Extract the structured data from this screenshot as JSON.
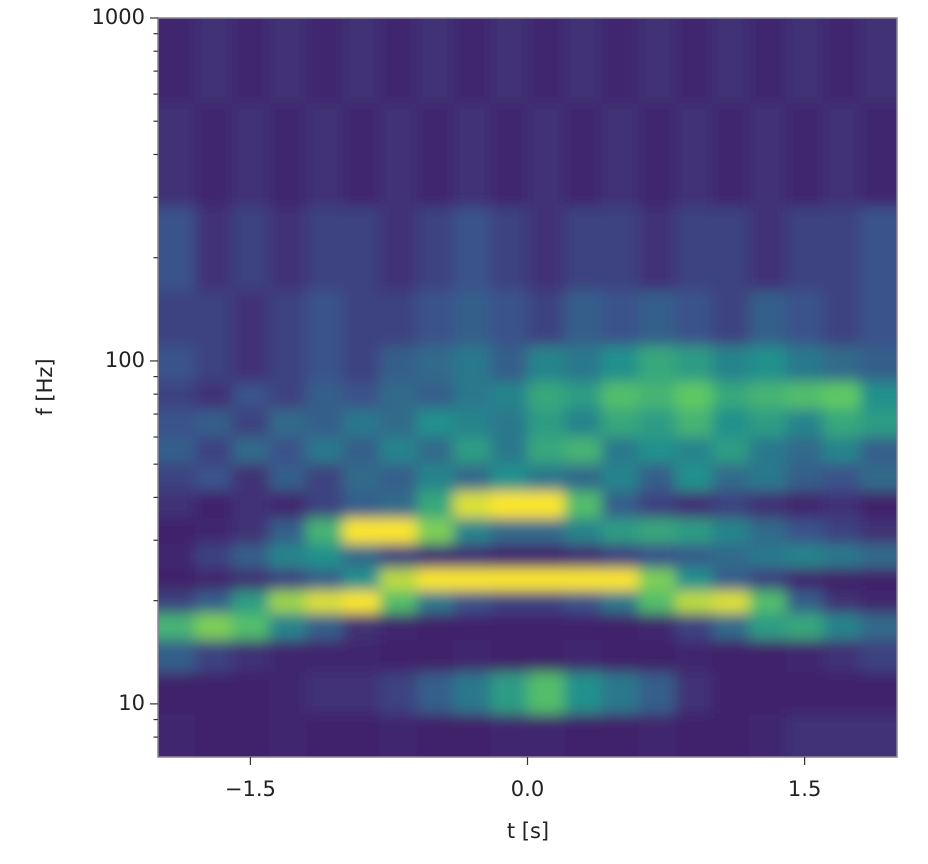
{
  "chart_data": {
    "type": "heatmap",
    "colormap": "viridis",
    "zlim": [
      0,
      1
    ],
    "xlabel": "t [s]",
    "ylabel": "f [Hz]",
    "xlim": [
      -2,
      2
    ],
    "ylim": [
      7,
      1000
    ],
    "yscale": "log",
    "xticks": [
      {
        "value": -1.5,
        "label": "−1.5"
      },
      {
        "value": 0,
        "label": "0.0"
      },
      1.5
    ],
    "yticks": [
      10,
      100,
      1000
    ],
    "yminorticks": [
      8,
      9,
      20,
      30,
      40,
      50,
      60,
      70,
      80,
      90,
      200,
      300,
      400,
      500,
      600,
      700,
      800,
      900
    ],
    "x": [
      -1.9,
      -1.7,
      -1.5,
      -1.3,
      -1.1,
      -0.9,
      -0.7,
      -0.5,
      -0.3,
      -0.1,
      0.1,
      0.3,
      0.5,
      0.7,
      0.9,
      1.1,
      1.3,
      1.5,
      1.7,
      1.9
    ],
    "y": [
      8,
      11,
      14,
      17,
      20,
      23,
      27,
      32,
      38,
      46,
      55,
      66,
      80,
      95,
      130,
      200,
      400,
      800
    ],
    "z": [
      [
        0.12,
        0.1,
        0.1,
        0.12,
        0.1,
        0.1,
        0.12,
        0.1,
        0.1,
        0.12,
        0.12,
        0.1,
        0.1,
        0.12,
        0.1,
        0.1,
        0.12,
        0.15,
        0.15,
        0.15
      ],
      [
        0.1,
        0.1,
        0.1,
        0.12,
        0.15,
        0.15,
        0.2,
        0.3,
        0.4,
        0.55,
        0.7,
        0.5,
        0.4,
        0.3,
        0.15,
        0.1,
        0.1,
        0.1,
        0.1,
        0.1
      ],
      [
        0.3,
        0.2,
        0.15,
        0.12,
        0.12,
        0.12,
        0.1,
        0.1,
        0.12,
        0.1,
        0.1,
        0.12,
        0.1,
        0.1,
        0.12,
        0.1,
        0.1,
        0.12,
        0.15,
        0.2
      ],
      [
        0.65,
        0.8,
        0.7,
        0.45,
        0.3,
        0.15,
        0.12,
        0.1,
        0.1,
        0.1,
        0.1,
        0.1,
        0.1,
        0.12,
        0.2,
        0.35,
        0.55,
        0.6,
        0.45,
        0.35
      ],
      [
        0.2,
        0.3,
        0.55,
        0.85,
        0.95,
        1.0,
        0.7,
        0.4,
        0.25,
        0.2,
        0.2,
        0.25,
        0.4,
        0.7,
        0.9,
        0.95,
        0.7,
        0.3,
        0.15,
        0.12
      ],
      [
        0.1,
        0.12,
        0.15,
        0.2,
        0.3,
        0.5,
        0.9,
        1.0,
        1.0,
        1.0,
        1.0,
        1.0,
        1.0,
        0.8,
        0.5,
        0.3,
        0.2,
        0.12,
        0.1,
        0.1
      ],
      [
        0.12,
        0.2,
        0.3,
        0.45,
        0.5,
        0.35,
        0.2,
        0.15,
        0.15,
        0.12,
        0.12,
        0.15,
        0.2,
        0.25,
        0.3,
        0.35,
        0.4,
        0.45,
        0.4,
        0.35
      ],
      [
        0.1,
        0.12,
        0.15,
        0.3,
        0.65,
        1.0,
        1.0,
        0.8,
        0.45,
        0.35,
        0.35,
        0.45,
        0.55,
        0.6,
        0.55,
        0.45,
        0.35,
        0.25,
        0.2,
        0.15
      ],
      [
        0.15,
        0.1,
        0.15,
        0.12,
        0.2,
        0.3,
        0.35,
        0.6,
        0.95,
        1.0,
        1.0,
        0.7,
        0.3,
        0.2,
        0.15,
        0.2,
        0.15,
        0.12,
        0.15,
        0.1
      ],
      [
        0.2,
        0.25,
        0.15,
        0.3,
        0.2,
        0.35,
        0.3,
        0.45,
        0.35,
        0.5,
        0.4,
        0.35,
        0.45,
        0.3,
        0.5,
        0.35,
        0.4,
        0.3,
        0.25,
        0.35
      ],
      [
        0.3,
        0.2,
        0.35,
        0.25,
        0.4,
        0.3,
        0.45,
        0.35,
        0.55,
        0.4,
        0.6,
        0.65,
        0.4,
        0.5,
        0.45,
        0.55,
        0.4,
        0.35,
        0.45,
        0.3
      ],
      [
        0.25,
        0.3,
        0.2,
        0.35,
        0.3,
        0.4,
        0.35,
        0.5,
        0.45,
        0.4,
        0.55,
        0.45,
        0.6,
        0.55,
        0.65,
        0.5,
        0.55,
        0.45,
        0.6,
        0.55
      ],
      [
        0.2,
        0.15,
        0.25,
        0.2,
        0.3,
        0.25,
        0.35,
        0.3,
        0.4,
        0.45,
        0.6,
        0.55,
        0.7,
        0.65,
        0.75,
        0.6,
        0.65,
        0.7,
        0.75,
        0.5
      ],
      [
        0.25,
        0.2,
        0.15,
        0.2,
        0.25,
        0.2,
        0.3,
        0.35,
        0.4,
        0.3,
        0.45,
        0.4,
        0.5,
        0.6,
        0.55,
        0.45,
        0.5,
        0.4,
        0.35,
        0.3
      ],
      [
        0.2,
        0.2,
        0.15,
        0.2,
        0.25,
        0.2,
        0.2,
        0.25,
        0.3,
        0.25,
        0.2,
        0.3,
        0.25,
        0.3,
        0.25,
        0.2,
        0.3,
        0.25,
        0.2,
        0.25
      ],
      [
        0.25,
        0.15,
        0.2,
        0.15,
        0.2,
        0.2,
        0.15,
        0.2,
        0.25,
        0.2,
        0.15,
        0.2,
        0.2,
        0.15,
        0.2,
        0.2,
        0.15,
        0.2,
        0.2,
        0.25
      ],
      [
        0.15,
        0.12,
        0.15,
        0.12,
        0.15,
        0.12,
        0.15,
        0.12,
        0.15,
        0.12,
        0.15,
        0.12,
        0.15,
        0.12,
        0.15,
        0.12,
        0.15,
        0.12,
        0.15,
        0.12
      ],
      [
        0.12,
        0.15,
        0.12,
        0.15,
        0.12,
        0.15,
        0.12,
        0.15,
        0.12,
        0.15,
        0.12,
        0.15,
        0.12,
        0.15,
        0.12,
        0.15,
        0.12,
        0.15,
        0.12,
        0.15
      ]
    ]
  }
}
